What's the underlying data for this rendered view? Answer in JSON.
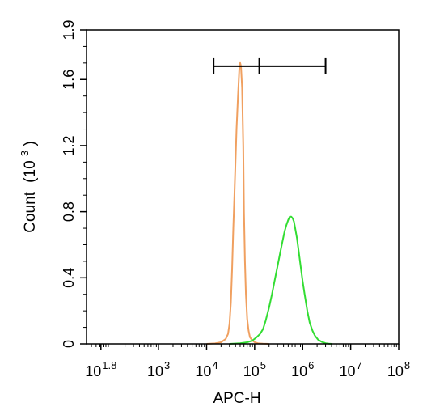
{
  "chart_data": {
    "type": "line",
    "xlabel": "APC-H",
    "ylabel": "Count",
    "ylabel_unit": "(10",
    "ylabel_unit_exp": "3",
    "ylabel_unit_close": ")",
    "x_scale": "log",
    "xlim": [
      31.6,
      100000000
    ],
    "ylim": [
      0,
      1.9
    ],
    "x_ticks": [
      {
        "base": "10",
        "exp": "1.8",
        "value": 63
      },
      {
        "base": "10",
        "exp": "3",
        "value": 1000
      },
      {
        "base": "10",
        "exp": "4",
        "value": 10000
      },
      {
        "base": "10",
        "exp": "5",
        "value": 100000
      },
      {
        "base": "10",
        "exp": "6",
        "value": 1000000
      },
      {
        "base": "10",
        "exp": "7",
        "value": 10000000
      },
      {
        "base": "10",
        "exp": "8",
        "value": 100000000
      }
    ],
    "y_ticks": [
      {
        "label": "0",
        "value": 0
      },
      {
        "label": "0.4",
        "value": 0.4
      },
      {
        "label": "0.8",
        "value": 0.8
      },
      {
        "label": "1.2",
        "value": 1.2
      },
      {
        "label": "1.6",
        "value": 1.6
      },
      {
        "label": "1.9",
        "value": 1.9
      }
    ],
    "gate": {
      "x_start": 14000,
      "x_mid": 125000,
      "x_end": 3000000,
      "y": 1.68
    },
    "series": [
      {
        "color": "#f0a060",
        "x": [
          10000,
          15000,
          20000,
          25000,
          28000,
          30000,
          32000,
          34000,
          36000,
          38000,
          40000,
          42000,
          45000,
          48000,
          50000,
          52000,
          55000,
          58000,
          60000,
          63000,
          66000,
          70000,
          75000,
          80000,
          90000,
          100000,
          120000,
          150000,
          200000
        ],
        "y": [
          0,
          0.003,
          0.01,
          0.03,
          0.06,
          0.12,
          0.25,
          0.45,
          0.7,
          0.9,
          1.1,
          1.3,
          1.5,
          1.66,
          1.7,
          1.68,
          1.55,
          1.2,
          0.8,
          0.5,
          0.3,
          0.15,
          0.08,
          0.04,
          0.02,
          0.01,
          0.003,
          0.001,
          0
        ]
      },
      {
        "color": "#33dd33",
        "x": [
          30000,
          50000,
          70000,
          90000,
          110000,
          130000,
          150000,
          170000,
          200000,
          230000,
          260000,
          300000,
          340000,
          380000,
          420000,
          460000,
          500000,
          540000,
          580000,
          620000,
          660000,
          700000,
          760000,
          820000,
          900000,
          1000000,
          1100000,
          1250000,
          1400000,
          1600000,
          1800000,
          2100000,
          2500000,
          3000000,
          3500000,
          4000000
        ],
        "y": [
          0,
          0.004,
          0.01,
          0.02,
          0.04,
          0.06,
          0.09,
          0.14,
          0.22,
          0.3,
          0.38,
          0.47,
          0.55,
          0.62,
          0.68,
          0.72,
          0.75,
          0.77,
          0.77,
          0.76,
          0.74,
          0.7,
          0.64,
          0.57,
          0.48,
          0.38,
          0.3,
          0.2,
          0.13,
          0.08,
          0.05,
          0.025,
          0.012,
          0.004,
          0.001,
          0
        ]
      }
    ]
  }
}
